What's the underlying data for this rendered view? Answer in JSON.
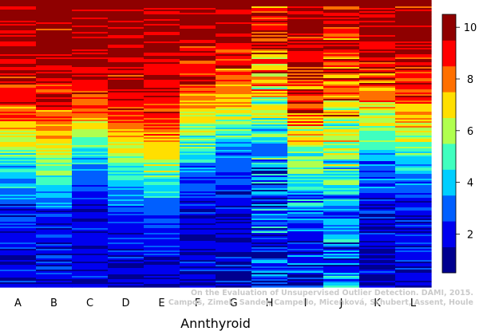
{
  "chart_data": {
    "type": "heatmap",
    "title": "",
    "xlabel": "Annthyroid",
    "ylabel": "",
    "columns": [
      "A",
      "B",
      "C",
      "D",
      "E",
      "F",
      "G",
      "H",
      "I",
      "J",
      "K",
      "L"
    ],
    "rows_sorted_by_rank": true,
    "value_range": [
      0.5,
      10.5
    ],
    "colorbar": {
      "ticks": [
        2,
        4,
        6,
        8,
        10
      ],
      "levels": [
        {
          "from": 0.5,
          "to": 1.5,
          "color": "#00008f"
        },
        {
          "from": 1.5,
          "to": 2.5,
          "color": "#0000ef"
        },
        {
          "from": 2.5,
          "to": 3.5,
          "color": "#005fff"
        },
        {
          "from": 3.5,
          "to": 4.5,
          "color": "#00cfff"
        },
        {
          "from": 4.5,
          "to": 5.5,
          "color": "#40ffbf"
        },
        {
          "from": 5.5,
          "to": 6.5,
          "color": "#b0ff4f"
        },
        {
          "from": 6.5,
          "to": 7.5,
          "color": "#ffdf00"
        },
        {
          "from": 7.5,
          "to": 8.5,
          "color": "#ff7000"
        },
        {
          "from": 8.5,
          "to": 9.5,
          "color": "#ff0000"
        },
        {
          "from": 9.5,
          "to": 10.5,
          "color": "#8f0000"
        }
      ]
    },
    "column_profiles": [
      {
        "column": "A",
        "top_value": 10,
        "bottom_value": 1.5,
        "midpoint_position": 0.52,
        "steepness": 4.8,
        "noise": 1.0
      },
      {
        "column": "B",
        "top_value": 10,
        "bottom_value": 1.5,
        "midpoint_position": 0.56,
        "steepness": 4.5,
        "noise": 1.2
      },
      {
        "column": "C",
        "top_value": 10,
        "bottom_value": 1.5,
        "midpoint_position": 0.48,
        "steepness": 6.0,
        "noise": 0.8
      },
      {
        "column": "D",
        "top_value": 10,
        "bottom_value": 1.5,
        "midpoint_position": 0.55,
        "steepness": 5.0,
        "noise": 0.8
      },
      {
        "column": "E",
        "top_value": 10,
        "bottom_value": 1.5,
        "midpoint_position": 0.58,
        "steepness": 4.8,
        "noise": 0.8
      },
      {
        "column": "F",
        "top_value": 10,
        "bottom_value": 1.5,
        "midpoint_position": 0.46,
        "steepness": 5.2,
        "noise": 1.1
      },
      {
        "column": "G",
        "top_value": 10,
        "bottom_value": 1.5,
        "midpoint_position": 0.42,
        "steepness": 5.5,
        "noise": 1.3
      },
      {
        "column": "H",
        "top_value": 10,
        "bottom_value": 2.0,
        "midpoint_position": 0.38,
        "steepness": 4.0,
        "noise": 2.2
      },
      {
        "column": "I",
        "top_value": 10,
        "bottom_value": 1.5,
        "midpoint_position": 0.55,
        "steepness": 4.2,
        "noise": 1.6
      },
      {
        "column": "J",
        "top_value": 10,
        "bottom_value": 2.5,
        "midpoint_position": 0.45,
        "steepness": 3.5,
        "noise": 2.0
      },
      {
        "column": "K",
        "top_value": 10,
        "bottom_value": 1.5,
        "midpoint_position": 0.44,
        "steepness": 4.8,
        "noise": 1.2
      },
      {
        "column": "L",
        "top_value": 10,
        "bottom_value": 1.5,
        "midpoint_position": 0.48,
        "steepness": 4.8,
        "noise": 1.1
      }
    ],
    "row_count": 180
  },
  "watermark": {
    "line1": "On the Evaluation of Unsupervised Outlier Detection. DAMI, 2015.",
    "line2": "Campos, Zimek, Sander, Campello, Micenková, Schubert, Assent, Houle"
  }
}
